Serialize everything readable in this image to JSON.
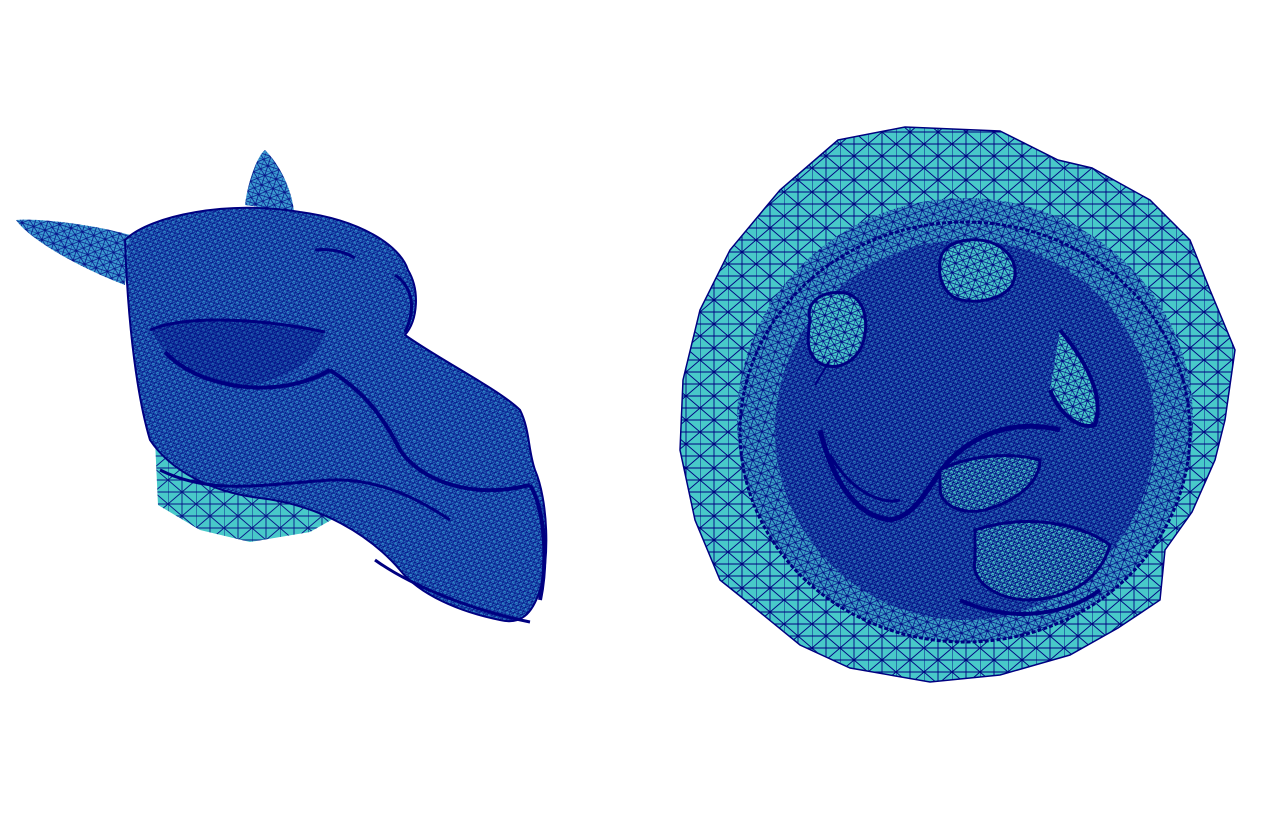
{
  "figure": {
    "panels": [
      {
        "name": "camel-head-3d-mesh"
      },
      {
        "name": "camel-head-disk-parameterization"
      }
    ],
    "colors": {
      "background": "#ffffff",
      "fill": "#48c9c9",
      "wire": "#000080",
      "dense_wire": "#0a1a8c"
    }
  }
}
